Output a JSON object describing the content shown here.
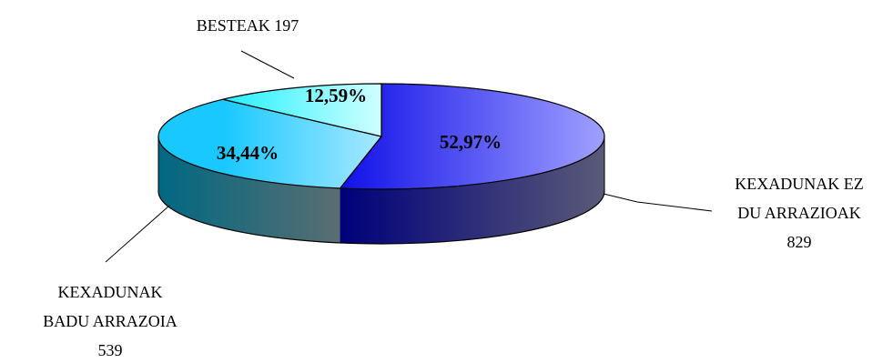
{
  "chart_data": {
    "type": "pie",
    "style": "3d",
    "title": "",
    "slices": [
      {
        "label_lines": [
          "KEXADUNAK EZ",
          "DU ARRAZIOAK",
          "829"
        ],
        "value": 829,
        "percent_label": "52,97%",
        "color_light": "#a0a0ff",
        "color_dark": "#1010e8",
        "side_light": "#5a5a78",
        "side_dark": "#00007a"
      },
      {
        "label_lines": [
          "KEXADUNAK",
          "BADU ARRAZOIA",
          "539"
        ],
        "value": 539,
        "percent_label": "34,44%",
        "color_light": "#a8e8ff",
        "color_dark": "#18c8ff",
        "side_light": "#5a6e70",
        "side_dark": "#006882"
      },
      {
        "label_lines": [
          "BESTEAK 197"
        ],
        "value": 197,
        "percent_label": "12,59%",
        "color_light": "#cfffff",
        "color_dark": "#22f0ff",
        "side_light": "#6a8a8a",
        "side_dark": "#0a8a92"
      }
    ],
    "legend": "none"
  }
}
